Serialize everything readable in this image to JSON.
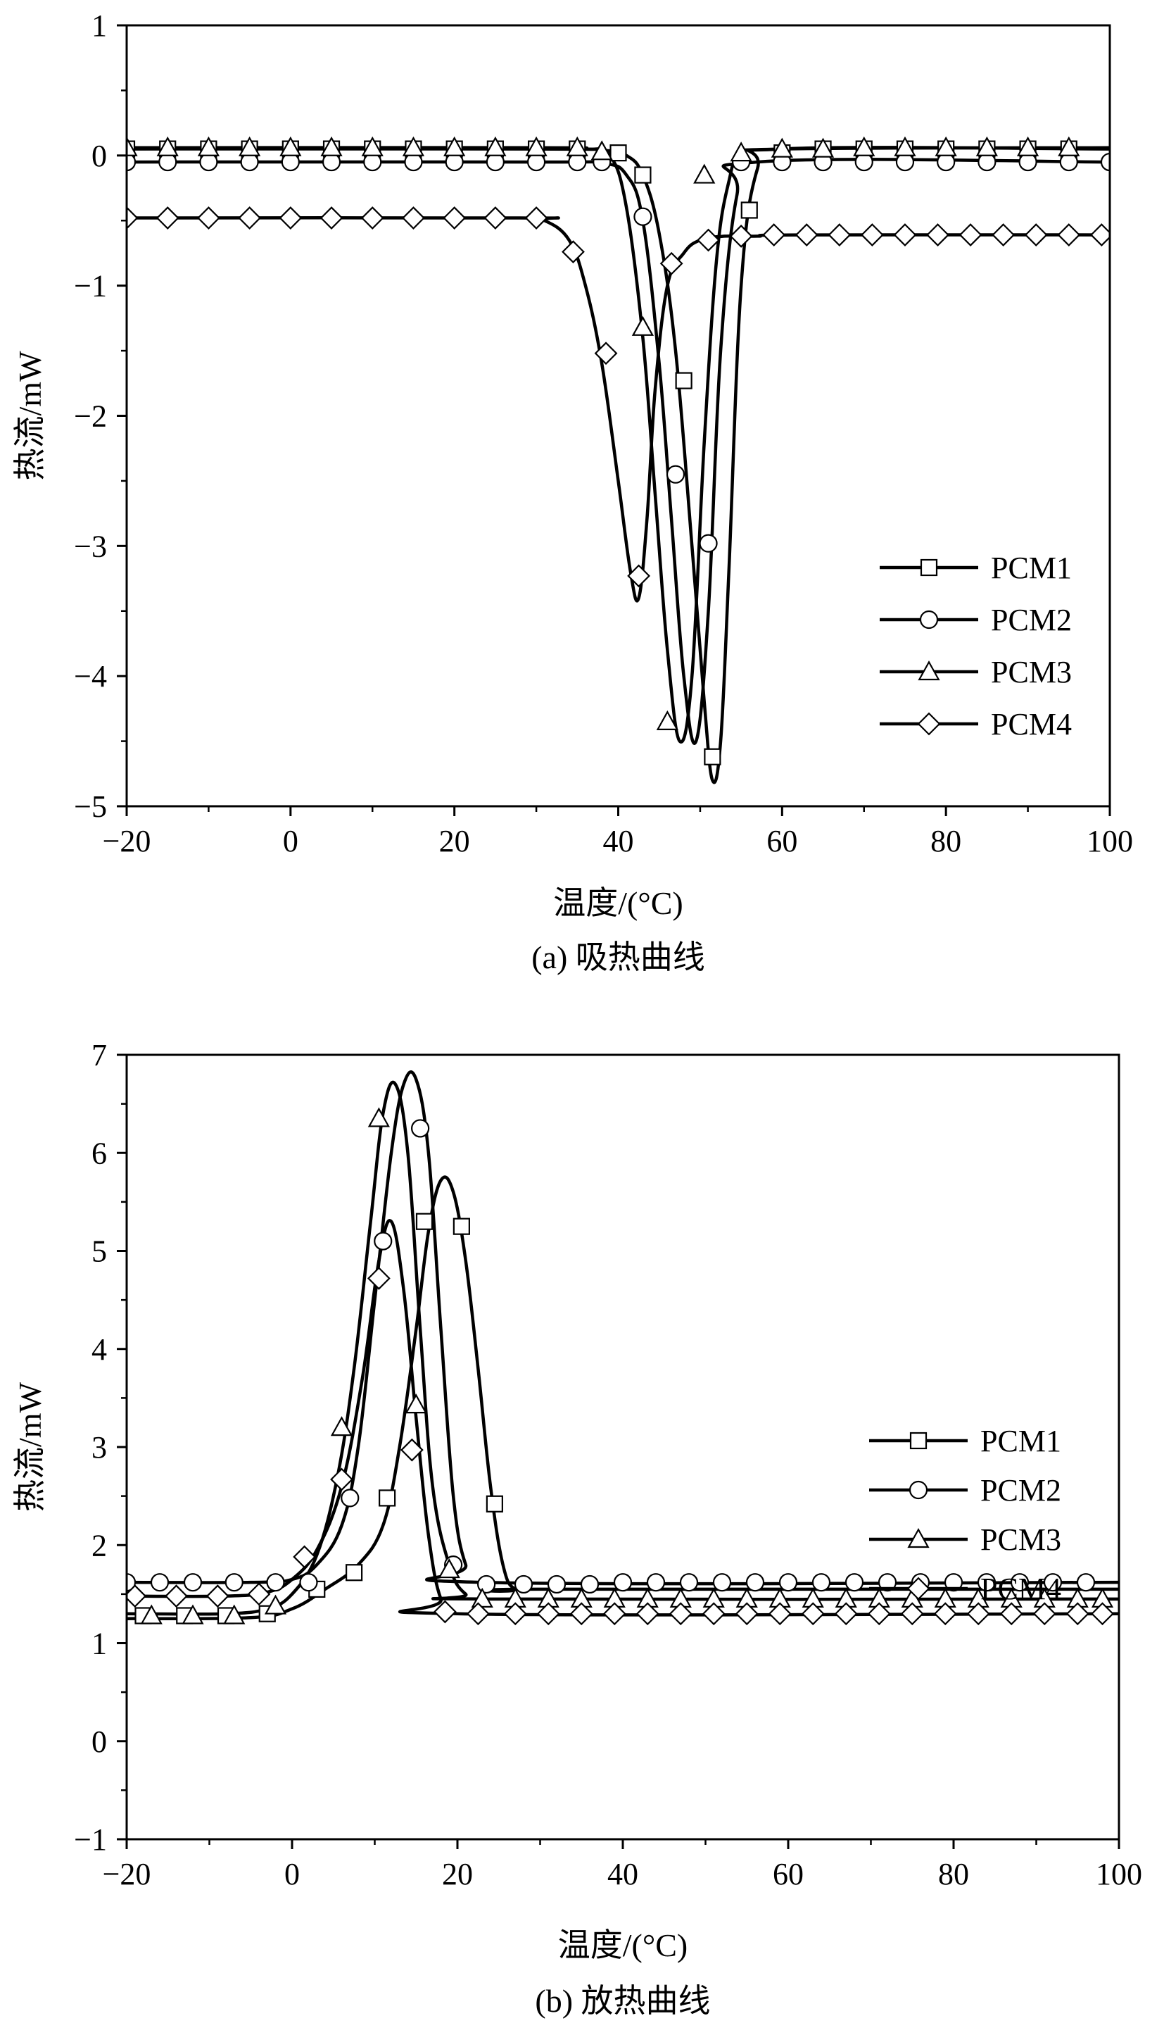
{
  "chart_data": [
    {
      "type": "line",
      "caption": "(a) 吸热曲线",
      "xlabel": "温度/(°C)",
      "ylabel": "热流/mW",
      "xlim": [
        -20,
        100
      ],
      "ylim": [
        -5,
        1
      ],
      "xticks": [
        -20,
        0,
        20,
        40,
        60,
        80,
        100
      ],
      "yticks": [
        -5,
        -4,
        -3,
        -2,
        -1,
        0,
        1
      ],
      "xtick_labels": [
        "−20",
        "0",
        "20",
        "40",
        "60",
        "80",
        "100"
      ],
      "ytick_labels": [
        "−5",
        "−4",
        "−3",
        "−2",
        "−1",
        "0",
        "1"
      ],
      "legend_position": "bottom-right",
      "series": [
        {
          "name": "PCM1",
          "marker": "square",
          "x": [
            -20,
            30,
            38,
            41,
            43,
            45,
            47,
            49,
            50.5,
            51.5,
            52.5,
            53.5,
            55,
            57,
            60,
            100
          ],
          "y": [
            0.05,
            0.05,
            0.04,
            0.0,
            -0.15,
            -0.6,
            -1.5,
            -3.0,
            -4.2,
            -4.8,
            -4.5,
            -3.2,
            -1.0,
            -0.1,
            0.05,
            0.05
          ],
          "marker_x": [
            -20,
            -15,
            -10,
            -5,
            0,
            5,
            10,
            15,
            20,
            25,
            30,
            35,
            40,
            43,
            48,
            51.5,
            56,
            60,
            65,
            70,
            75,
            80,
            85,
            90,
            95
          ],
          "marker_y": [
            0.05,
            0.05,
            0.05,
            0.05,
            0.05,
            0.05,
            0.05,
            0.05,
            0.05,
            0.05,
            0.05,
            0.05,
            0.02,
            -0.15,
            -1.73,
            -4.62,
            -0.42,
            0.02,
            0.05,
            0.05,
            0.05,
            0.05,
            0.05,
            0.05,
            0.05
          ]
        },
        {
          "name": "PCM2",
          "marker": "circle",
          "x": [
            -20,
            30,
            38,
            41,
            43,
            45,
            46.5,
            48,
            49.5,
            51,
            52.5,
            54.5,
            57,
            100
          ],
          "y": [
            -0.05,
            -0.05,
            -0.06,
            -0.15,
            -0.5,
            -1.6,
            -2.8,
            -4.0,
            -4.5,
            -3.5,
            -1.5,
            -0.3,
            -0.05,
            -0.05
          ],
          "marker_x": [
            -20,
            -15,
            -10,
            -5,
            0,
            5,
            10,
            15,
            20,
            25,
            30,
            35,
            38,
            43,
            47,
            51,
            55,
            60,
            65,
            70,
            75,
            80,
            85,
            90,
            95,
            100
          ],
          "marker_y": [
            -0.05,
            -0.05,
            -0.05,
            -0.05,
            -0.05,
            -0.05,
            -0.05,
            -0.05,
            -0.05,
            -0.05,
            -0.05,
            -0.05,
            -0.05,
            -0.47,
            -2.45,
            -2.98,
            -0.05,
            -0.05,
            -0.05,
            -0.05,
            -0.05,
            -0.05,
            -0.05,
            -0.05,
            -0.05,
            -0.05
          ]
        },
        {
          "name": "PCM3",
          "marker": "triangle",
          "x": [
            -20,
            30,
            36,
            39,
            41,
            43,
            44.5,
            46,
            47.5,
            49,
            50.5,
            52,
            53.5,
            55,
            60,
            100
          ],
          "y": [
            0.06,
            0.06,
            0.05,
            0.0,
            -0.4,
            -1.4,
            -2.6,
            -3.8,
            -4.5,
            -4.0,
            -2.2,
            -0.8,
            -0.2,
            0.0,
            0.05,
            0.06
          ],
          "marker_x": [
            -20,
            -15,
            -10,
            -5,
            0,
            5,
            10,
            15,
            20,
            25,
            30,
            35,
            38,
            43,
            46,
            50.5,
            55,
            60,
            65,
            70,
            75,
            80,
            85,
            90,
            95
          ],
          "marker_y": [
            0.06,
            0.06,
            0.06,
            0.06,
            0.06,
            0.06,
            0.06,
            0.06,
            0.06,
            0.06,
            0.06,
            0.06,
            0.03,
            -1.32,
            -4.35,
            -0.15,
            0.02,
            0.05,
            0.05,
            0.06,
            0.06,
            0.06,
            0.06,
            0.06,
            0.06
          ]
        },
        {
          "name": "PCM4",
          "marker": "diamond",
          "x": [
            -20,
            28,
            31,
            34,
            36,
            38,
            40,
            41.5,
            42.5,
            43.5,
            44.5,
            46,
            48,
            50,
            53,
            57,
            62,
            100
          ],
          "y": [
            -0.48,
            -0.48,
            -0.5,
            -0.65,
            -1.0,
            -1.6,
            -2.5,
            -3.2,
            -3.4,
            -2.8,
            -1.8,
            -1.0,
            -0.75,
            -0.65,
            -0.62,
            -0.62,
            -0.61,
            -0.61
          ],
          "marker_x": [
            -20,
            -15,
            -10,
            -5,
            0,
            5,
            10,
            15,
            20,
            25,
            30,
            34.5,
            38.5,
            42.5,
            46.5,
            51,
            55,
            59,
            63,
            67,
            71,
            75,
            79,
            83,
            87,
            91,
            95,
            99
          ],
          "marker_y": [
            -0.48,
            -0.48,
            -0.48,
            -0.48,
            -0.48,
            -0.48,
            -0.48,
            -0.48,
            -0.48,
            -0.48,
            -0.48,
            -0.74,
            -1.52,
            -3.23,
            -0.83,
            -0.65,
            -0.62,
            -0.61,
            -0.61,
            -0.61,
            -0.61,
            -0.61,
            -0.61,
            -0.61,
            -0.61,
            -0.61,
            -0.61,
            -0.61
          ]
        }
      ]
    },
    {
      "type": "line",
      "caption": "(b) 放热曲线",
      "xlabel": "温度/(°C)",
      "ylabel": "热流/mW",
      "xlim": [
        -20,
        100
      ],
      "ylim": [
        -1,
        7
      ],
      "xticks": [
        -20,
        0,
        20,
        40,
        60,
        80,
        100
      ],
      "yticks": [
        -1,
        0,
        1,
        2,
        3,
        4,
        5,
        6,
        7
      ],
      "xtick_labels": [
        "−20",
        "0",
        "20",
        "40",
        "60",
        "80",
        "100"
      ],
      "ytick_labels": [
        "−1",
        "0",
        "1",
        "2",
        "3",
        "4",
        "5",
        "6",
        "7"
      ],
      "legend_position": "center-right",
      "series": [
        {
          "name": "PCM1",
          "marker": "square",
          "x": [
            -20,
            -5,
            0,
            4,
            8,
            11,
            13,
            15,
            16.5,
            18,
            19.5,
            21,
            22.5,
            24,
            25.5,
            27,
            30,
            100
          ],
          "y": [
            1.25,
            1.26,
            1.35,
            1.55,
            1.8,
            2.2,
            3.0,
            4.2,
            5.2,
            5.72,
            5.6,
            4.9,
            3.8,
            2.6,
            1.8,
            1.55,
            1.55,
            1.55
          ],
          "marker_x": [
            -18,
            -13,
            -8,
            -3,
            3,
            7.5,
            11.5,
            16,
            20.5,
            24.5
          ],
          "marker_y": [
            1.28,
            1.28,
            1.28,
            1.3,
            1.55,
            1.72,
            2.48,
            5.3,
            5.25,
            2.42
          ]
        },
        {
          "name": "PCM2",
          "marker": "circle",
          "x": [
            -20,
            -5,
            0,
            3,
            6,
            8,
            10,
            12,
            13.5,
            15,
            16.5,
            18,
            19.5,
            21,
            23,
            100
          ],
          "y": [
            1.62,
            1.62,
            1.65,
            1.8,
            2.2,
            3.0,
            4.5,
            6.0,
            6.7,
            6.75,
            6.0,
            4.2,
            2.5,
            1.8,
            1.62,
            1.62
          ],
          "marker_x": [
            -20,
            -16,
            -12,
            -7,
            -2,
            2,
            7,
            11,
            15.5,
            19.5,
            23.5,
            28,
            32,
            36,
            40,
            44,
            48,
            52,
            56,
            60,
            64,
            68,
            72,
            76,
            80,
            84,
            88,
            92,
            96
          ],
          "marker_y": [
            1.62,
            1.62,
            1.62,
            1.62,
            1.62,
            1.62,
            2.48,
            5.1,
            6.25,
            1.8,
            1.6,
            1.6,
            1.6,
            1.6,
            1.62,
            1.62,
            1.62,
            1.62,
            1.62,
            1.62,
            1.62,
            1.62,
            1.62,
            1.62,
            1.62,
            1.62,
            1.62,
            1.62,
            1.62
          ]
        },
        {
          "name": "PCM3",
          "marker": "triangle",
          "x": [
            -20,
            -8,
            -3,
            0,
            3,
            5.5,
            7.5,
            9.5,
            11,
            12.5,
            14,
            15.5,
            17,
            19,
            21,
            24,
            100
          ],
          "y": [
            1.3,
            1.3,
            1.35,
            1.5,
            1.9,
            2.7,
            3.8,
            5.3,
            6.4,
            6.7,
            6.0,
            4.2,
            2.6,
            1.8,
            1.5,
            1.45,
            1.45
          ],
          "marker_x": [
            -17,
            -12,
            -7,
            -2,
            6,
            10.5,
            15,
            19,
            23,
            27,
            31,
            35,
            39,
            43,
            47,
            51,
            55,
            59,
            63,
            67,
            71,
            75,
            79,
            83,
            87,
            91,
            95,
            98
          ],
          "marker_y": [
            1.28,
            1.28,
            1.28,
            1.38,
            3.2,
            6.35,
            3.43,
            1.75,
            1.45,
            1.45,
            1.45,
            1.45,
            1.45,
            1.45,
            1.45,
            1.45,
            1.45,
            1.45,
            1.45,
            1.45,
            1.45,
            1.45,
            1.45,
            1.45,
            1.45,
            1.45,
            1.45,
            1.45
          ]
        },
        {
          "name": "PCM4",
          "marker": "diamond",
          "x": [
            -20,
            -8,
            -3,
            0,
            3,
            6,
            8.5,
            10.5,
            12,
            13.5,
            15,
            16.5,
            18,
            20,
            100
          ],
          "y": [
            1.48,
            1.48,
            1.52,
            1.65,
            1.95,
            2.6,
            3.7,
            4.9,
            5.3,
            4.6,
            3.3,
            2.1,
            1.45,
            1.3,
            1.3
          ],
          "marker_x": [
            -19,
            -14,
            -9,
            -4,
            1.5,
            6,
            10.5,
            14.5,
            18.5,
            22.5,
            27,
            31,
            35,
            39,
            43,
            47,
            51,
            55,
            59,
            63,
            67,
            71,
            75,
            79,
            83,
            87,
            91,
            95,
            98
          ],
          "marker_y": [
            1.48,
            1.48,
            1.48,
            1.5,
            1.88,
            2.67,
            4.72,
            2.97,
            1.32,
            1.3,
            1.3,
            1.3,
            1.3,
            1.3,
            1.3,
            1.3,
            1.3,
            1.3,
            1.3,
            1.3,
            1.3,
            1.3,
            1.3,
            1.3,
            1.3,
            1.3,
            1.3,
            1.3,
            1.3
          ]
        }
      ]
    }
  ]
}
